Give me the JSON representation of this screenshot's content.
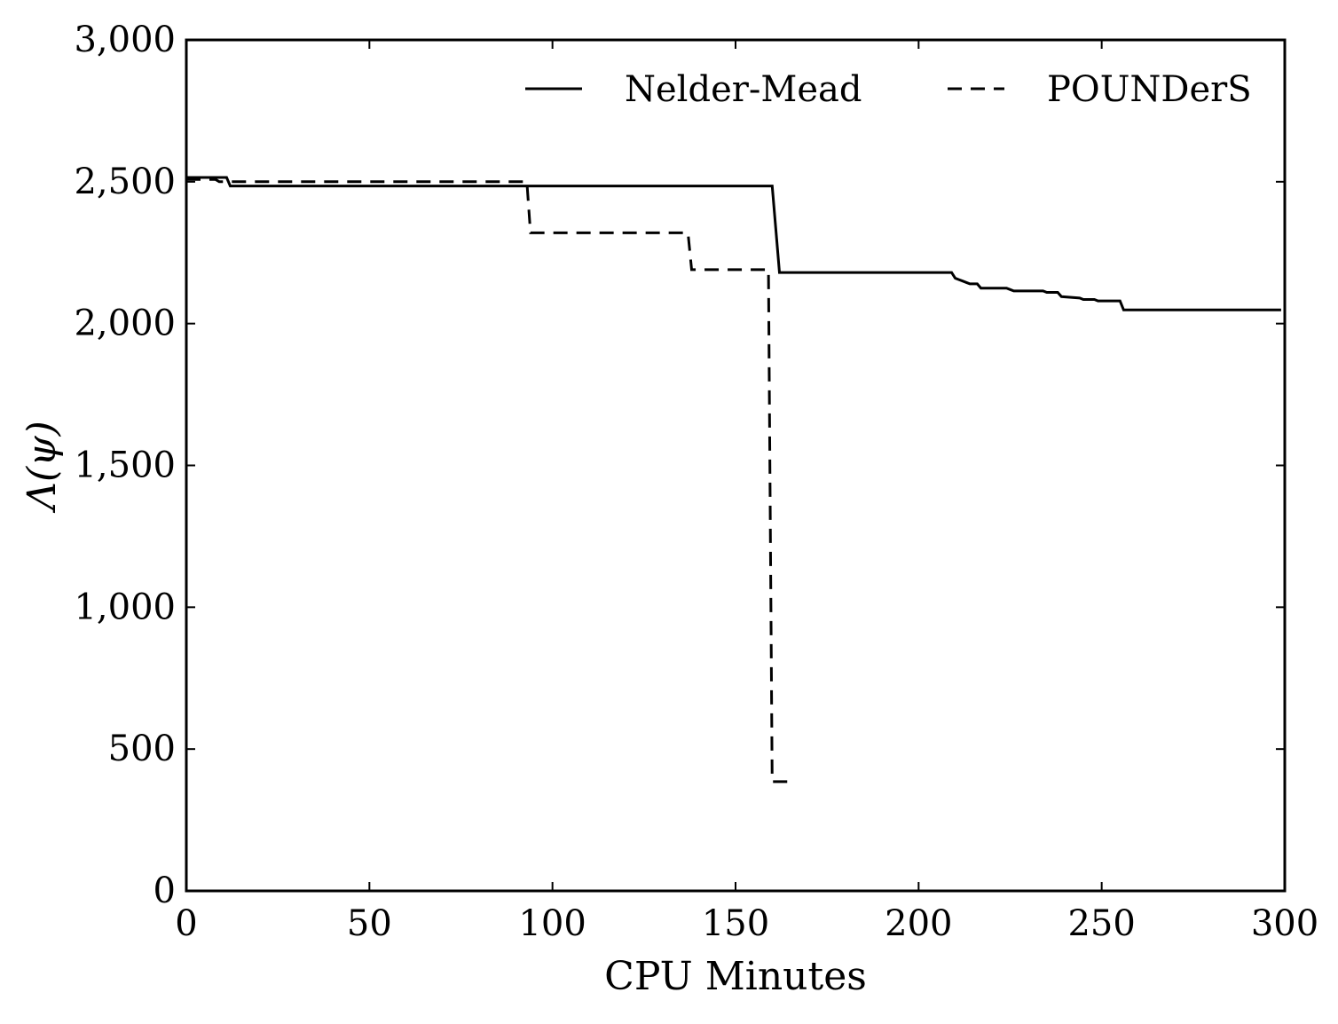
{
  "chart_data": {
    "type": "line",
    "title": "",
    "xlabel": "CPU Minutes",
    "ylabel": "Λ(ψ)",
    "xlim": [
      0,
      300
    ],
    "ylim": [
      0,
      3000
    ],
    "xticks": [
      0,
      50,
      100,
      150,
      200,
      250,
      300
    ],
    "yticks": [
      0,
      500,
      1000,
      1500,
      2000,
      2500,
      3000
    ],
    "xtick_labels": [
      "0",
      "50",
      "100",
      "150",
      "200",
      "250",
      "300"
    ],
    "ytick_labels": [
      "0",
      "500",
      "1,000",
      "1,500",
      "2,000",
      "2,500",
      "3,000"
    ],
    "grid": false,
    "legend_position": "top-right",
    "series": [
      {
        "name": "Nelder-Mead",
        "style": "solid",
        "color": "#000000",
        "x": [
          0,
          11,
          12,
          160,
          162,
          209,
          210,
          211,
          212,
          213,
          214,
          216,
          217,
          218,
          224,
          225,
          226,
          234,
          235,
          238,
          239,
          244,
          245,
          248,
          249,
          255,
          256,
          299
        ],
        "y": [
          2515,
          2515,
          2485,
          2485,
          2180,
          2180,
          2160,
          2155,
          2150,
          2145,
          2140,
          2140,
          2125,
          2125,
          2125,
          2120,
          2115,
          2115,
          2110,
          2110,
          2095,
          2090,
          2085,
          2085,
          2080,
          2080,
          2048,
          2048
        ]
      },
      {
        "name": "POUNDerS",
        "style": "dashed",
        "color": "#000000",
        "x": [
          0,
          8,
          9,
          93,
          94,
          137,
          138,
          159,
          160,
          161,
          165
        ],
        "y": [
          2508,
          2508,
          2500,
          2500,
          2320,
          2320,
          2190,
          2190,
          385,
          385,
          385
        ]
      }
    ]
  }
}
